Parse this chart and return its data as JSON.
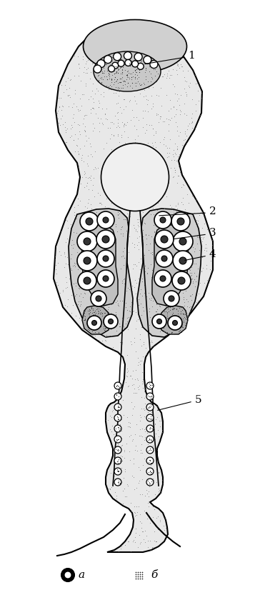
{
  "figure_width": 3.78,
  "figure_height": 8.47,
  "dpi": 100,
  "bg_color": "#ffffff",
  "body_fill": "#d8d8d8",
  "body_stipple": true,
  "outline_color": "#000000",
  "label_1": "1",
  "label_2": "2",
  "label_3": "3",
  "label_4": "4",
  "label_5": "5",
  "legend_a": "a",
  "legend_b": "б",
  "title_fontsize": 10,
  "label_fontsize": 11
}
